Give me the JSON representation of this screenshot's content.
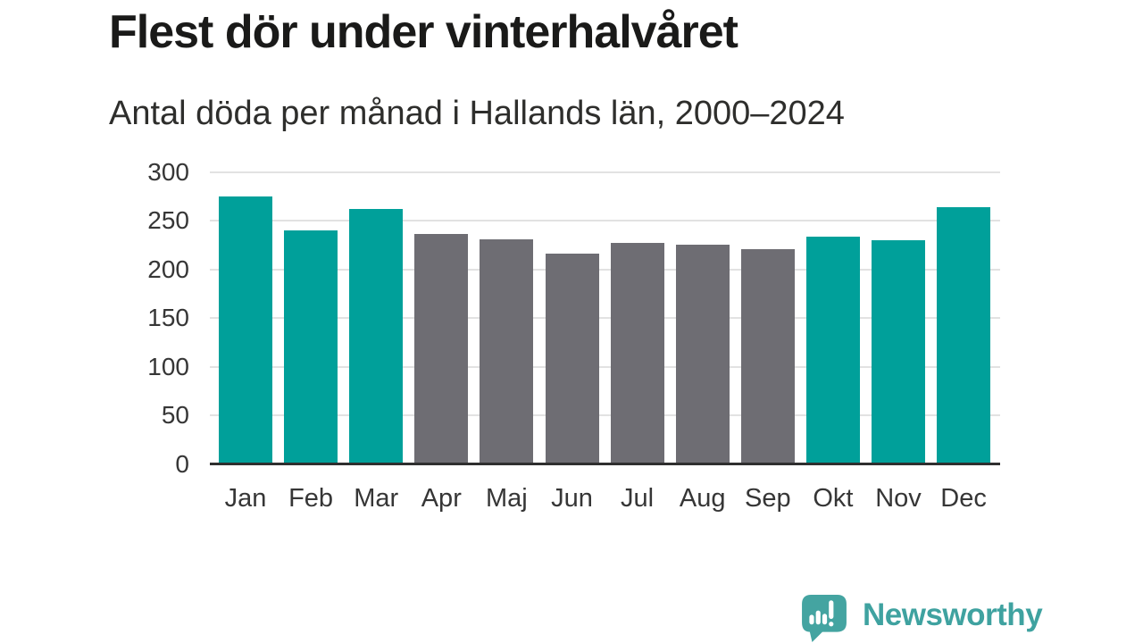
{
  "header": {
    "title": "Flest dör under vinterhalvåret",
    "subtitle": "Antal döda per månad i Hallands län, 2000–2024"
  },
  "chart_data": {
    "type": "bar",
    "title": "Flest dör under vinterhalvåret",
    "subtitle": "Antal döda per månad i Hallands län, 2000–2024",
    "categories": [
      "Jan",
      "Feb",
      "Mar",
      "Apr",
      "Maj",
      "Jun",
      "Jul",
      "Aug",
      "Sep",
      "Okt",
      "Nov",
      "Dec"
    ],
    "values": [
      275,
      240,
      262,
      237,
      231,
      216,
      227,
      226,
      221,
      234,
      230,
      264
    ],
    "bar_groups": [
      "winter",
      "winter",
      "winter",
      "summer",
      "summer",
      "summer",
      "summer",
      "summer",
      "summer",
      "winter",
      "winter",
      "winter"
    ],
    "group_colors": {
      "winter": "#00A09A",
      "summer": "#6E6D73"
    },
    "xlabel": "",
    "ylabel": "",
    "ylim": [
      0,
      300
    ],
    "yticks": [
      0,
      50,
      100,
      150,
      200,
      250,
      300
    ],
    "grid": true,
    "legend": "none",
    "gridline_color": "#e2e2e2",
    "axis_line_color": "#2f2f2f",
    "tick_label_color": "#363636"
  },
  "footer": {
    "brand": "Newsworthy",
    "brand_color": "#3FA2A0",
    "logo_bubble_color": "#44A4A1"
  }
}
